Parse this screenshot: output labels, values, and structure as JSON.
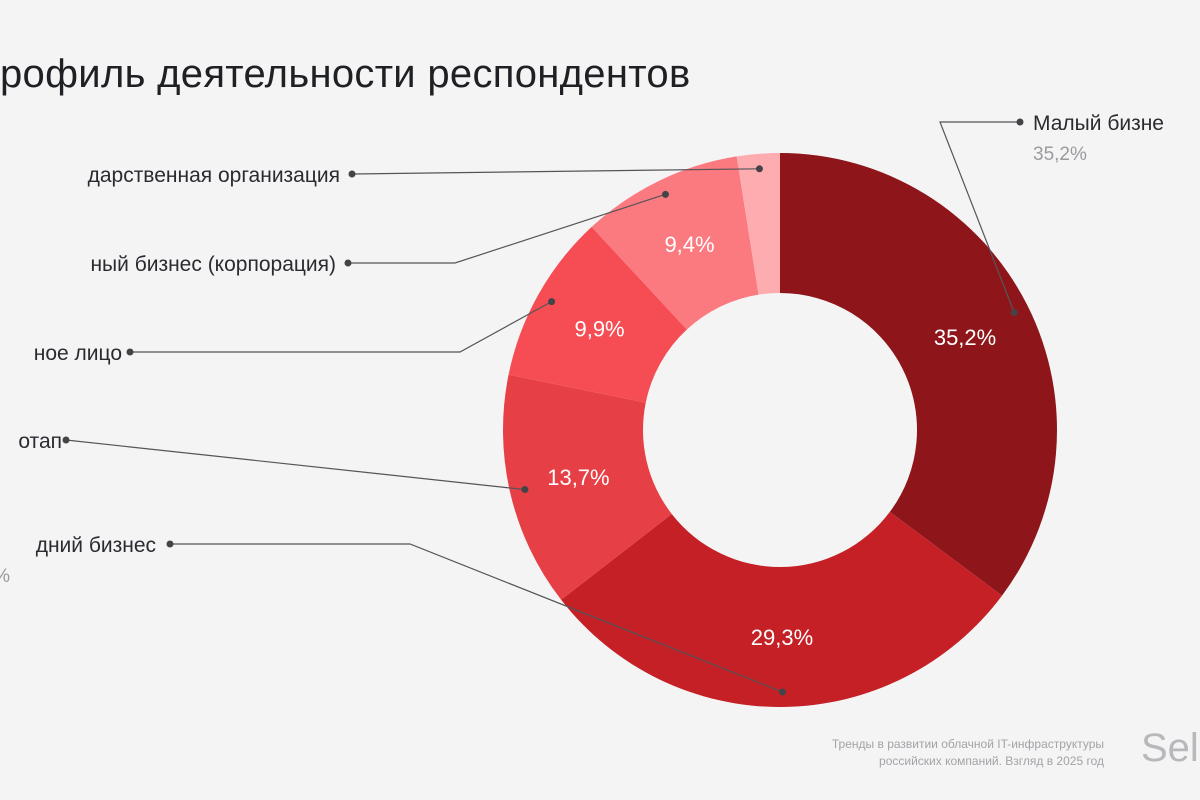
{
  "chart_data": {
    "type": "pie",
    "title": "рофиль деятельности респондентов",
    "categories": [
      "Малый бизне",
      "дний бизнес",
      "отап",
      "ное лицо",
      "ный бизнес (корпорация)",
      "дарственная организация"
    ],
    "values": [
      35.2,
      29.3,
      13.7,
      9.9,
      9.4,
      2.5
    ],
    "slice_labels": [
      "35,2%",
      "29,3%",
      "13,7%",
      "9,9%",
      "9,4%",
      ""
    ],
    "sublabels": [
      "35,2%",
      "%",
      "",
      "",
      "",
      ""
    ],
    "colors": [
      "#8e161b",
      "#c42026",
      "#e73f46",
      "#f64c53",
      "#fb7a80",
      "#fdadb0"
    ],
    "donut": true
  },
  "footnote": {
    "line1": "Тренды в развитии облачной IT-инфраструктуры",
    "line2": "российских компаний. Взгляд в 2025 год"
  },
  "brand": "Sele"
}
